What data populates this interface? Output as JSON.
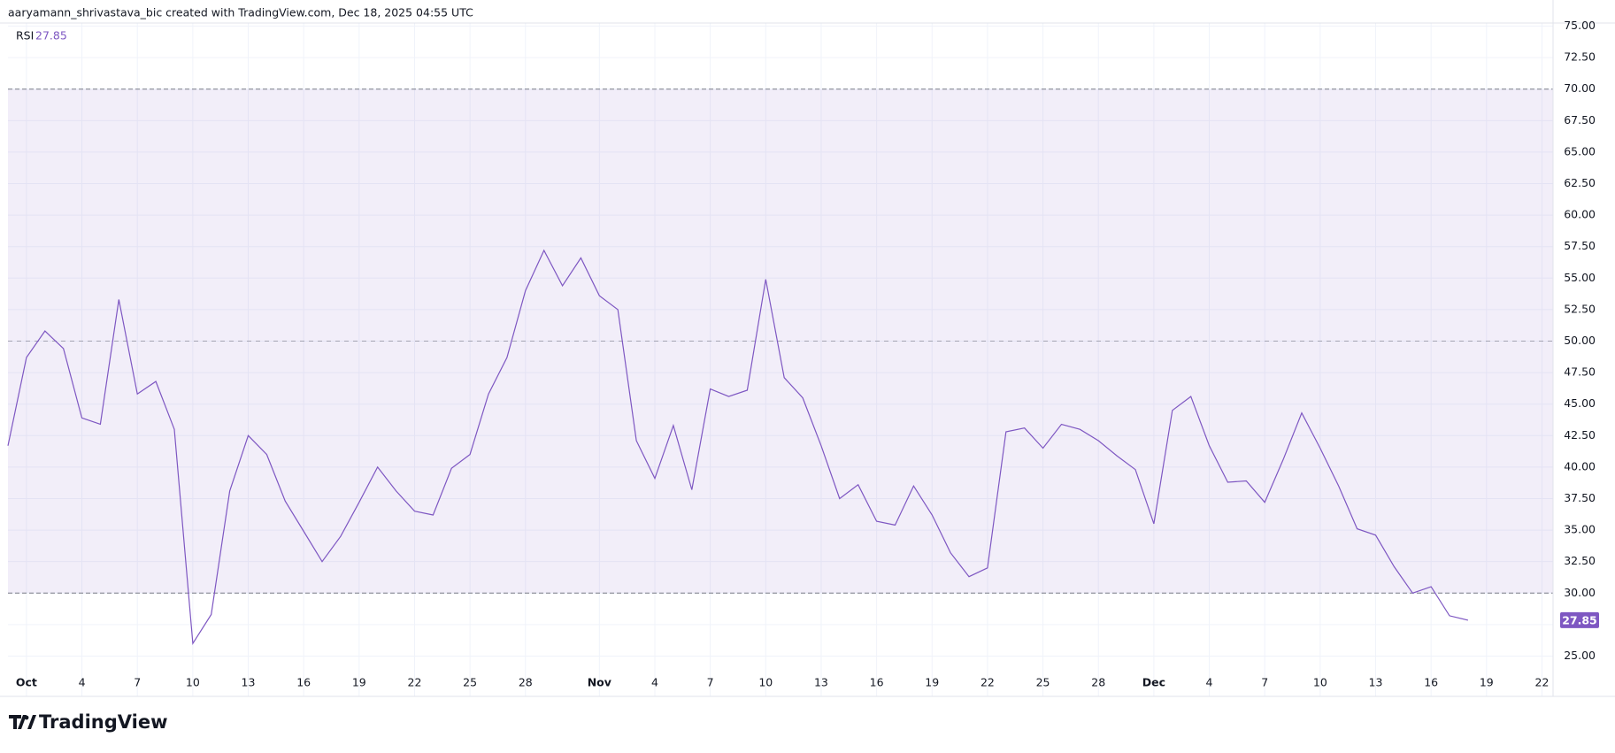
{
  "header": {
    "credit": "aaryamann_shrivastava_bic created with TradingView.com, Dec 18, 2025 04:55 UTC"
  },
  "footer": {
    "brand": "TradingView"
  },
  "chart_data": {
    "type": "line",
    "categories": [
      "Sep 30",
      "Oct 1",
      "Oct 2",
      "Oct 3",
      "Oct 4",
      "Oct 5",
      "Oct 6",
      "Oct 7",
      "Oct 8",
      "Oct 9",
      "Oct 10",
      "Oct 11",
      "Oct 12",
      "Oct 13",
      "Oct 14",
      "Oct 15",
      "Oct 16",
      "Oct 17",
      "Oct 18",
      "Oct 19",
      "Oct 20",
      "Oct 21",
      "Oct 22",
      "Oct 23",
      "Oct 24",
      "Oct 25",
      "Oct 26",
      "Oct 27",
      "Oct 28",
      "Oct 29",
      "Oct 30",
      "Oct 31",
      "Nov 1",
      "Nov 2",
      "Nov 3",
      "Nov 4",
      "Nov 5",
      "Nov 6",
      "Nov 7",
      "Nov 8",
      "Nov 9",
      "Nov 10",
      "Nov 11",
      "Nov 12",
      "Nov 13",
      "Nov 14",
      "Nov 15",
      "Nov 16",
      "Nov 17",
      "Nov 18",
      "Nov 19",
      "Nov 20",
      "Nov 21",
      "Nov 22",
      "Nov 23",
      "Nov 24",
      "Nov 25",
      "Nov 26",
      "Nov 27",
      "Nov 28",
      "Nov 29",
      "Nov 30",
      "Dec 1",
      "Dec 2",
      "Dec 3",
      "Dec 4",
      "Dec 5",
      "Dec 6",
      "Dec 7",
      "Dec 8",
      "Dec 9",
      "Dec 10",
      "Dec 11",
      "Dec 12",
      "Dec 13",
      "Dec 14",
      "Dec 15",
      "Dec 16",
      "Dec 17",
      "Dec 18",
      "Dec 19",
      "Dec 20",
      "Dec 21",
      "Dec 22"
    ],
    "series": [
      {
        "name": "RSI",
        "color": "#7e57c2",
        "values": [
          41.7,
          48.7,
          50.8,
          49.4,
          43.9,
          43.4,
          53.3,
          45.8,
          46.8,
          43.0,
          26.0,
          28.3,
          38.1,
          42.5,
          41.0,
          37.3,
          34.9,
          32.5,
          34.5,
          37.2,
          40.0,
          38.1,
          36.5,
          36.2,
          39.9,
          41.0,
          45.8,
          48.7,
          54.0,
          57.2,
          54.4,
          56.6,
          53.6,
          52.5,
          42.1,
          39.1,
          43.3,
          38.2,
          46.2,
          45.6,
          46.1,
          54.9,
          47.1,
          45.5,
          41.7,
          37.5,
          38.6,
          35.7,
          35.4,
          38.5,
          36.2,
          33.2,
          31.3,
          32.0,
          42.8,
          43.1,
          41.5,
          43.4,
          43.0,
          42.1,
          40.9,
          39.8,
          35.5,
          44.5,
          45.6,
          41.7,
          38.8,
          38.9,
          37.2,
          40.6,
          44.3,
          41.5,
          38.5,
          35.1,
          34.6,
          32.1,
          30.0,
          30.5,
          28.2,
          27.85,
          null,
          null,
          null,
          null
        ]
      }
    ],
    "xticks": [
      {
        "value": "Oct 1",
        "label": "Oct"
      },
      {
        "value": "Oct 4",
        "label": "4"
      },
      {
        "value": "Oct 7",
        "label": "7"
      },
      {
        "value": "Oct 10",
        "label": "10"
      },
      {
        "value": "Oct 13",
        "label": "13"
      },
      {
        "value": "Oct 16",
        "label": "16"
      },
      {
        "value": "Oct 19",
        "label": "19"
      },
      {
        "value": "Oct 22",
        "label": "22"
      },
      {
        "value": "Oct 25",
        "label": "25"
      },
      {
        "value": "Oct 28",
        "label": "28"
      },
      {
        "value": "Nov 1",
        "label": "Nov"
      },
      {
        "value": "Nov 4",
        "label": "4"
      },
      {
        "value": "Nov 7",
        "label": "7"
      },
      {
        "value": "Nov 10",
        "label": "10"
      },
      {
        "value": "Nov 13",
        "label": "13"
      },
      {
        "value": "Nov 16",
        "label": "16"
      },
      {
        "value": "Nov 19",
        "label": "19"
      },
      {
        "value": "Nov 22",
        "label": "22"
      },
      {
        "value": "Nov 25",
        "label": "25"
      },
      {
        "value": "Nov 28",
        "label": "28"
      },
      {
        "value": "Dec 1",
        "label": "Dec"
      },
      {
        "value": "Dec 4",
        "label": "4"
      },
      {
        "value": "Dec 7",
        "label": "7"
      },
      {
        "value": "Dec 10",
        "label": "10"
      },
      {
        "value": "Dec 13",
        "label": "13"
      },
      {
        "value": "Dec 16",
        "label": "16"
      },
      {
        "value": "Dec 19",
        "label": "19"
      },
      {
        "value": "Dec 22",
        "label": "22"
      }
    ],
    "ylim": [
      21.8,
      75.25
    ],
    "yticks": [
      {
        "value": 25,
        "label": "25.00"
      },
      {
        "value": 27.5,
        "label": "27.50"
      },
      {
        "value": 30,
        "label": "30.00"
      },
      {
        "value": 32.5,
        "label": "32.50"
      },
      {
        "value": 35,
        "label": "35.00"
      },
      {
        "value": 37.5,
        "label": "37.50"
      },
      {
        "value": 40,
        "label": "40.00"
      },
      {
        "value": 42.5,
        "label": "42.50"
      },
      {
        "value": 45,
        "label": "45.00"
      },
      {
        "value": 47.5,
        "label": "47.50"
      },
      {
        "value": 50,
        "label": "50.00"
      },
      {
        "value": 52.5,
        "label": "52.50"
      },
      {
        "value": 55,
        "label": "55.00"
      },
      {
        "value": 57.5,
        "label": "57.50"
      },
      {
        "value": 60,
        "label": "60.00"
      },
      {
        "value": 62.5,
        "label": "62.50"
      },
      {
        "value": 65,
        "label": "65.00"
      },
      {
        "value": 67.5,
        "label": "67.50"
      },
      {
        "value": 70,
        "label": "70.00"
      },
      {
        "value": 72.5,
        "label": "72.50"
      },
      {
        "value": 75,
        "label": "75.00"
      }
    ],
    "bands": {
      "upper": 70,
      "middle": 50,
      "lower": 30,
      "fill": "rgba(126,87,194,0.1)",
      "line_color": "#787b86"
    },
    "grid": true
  }
}
